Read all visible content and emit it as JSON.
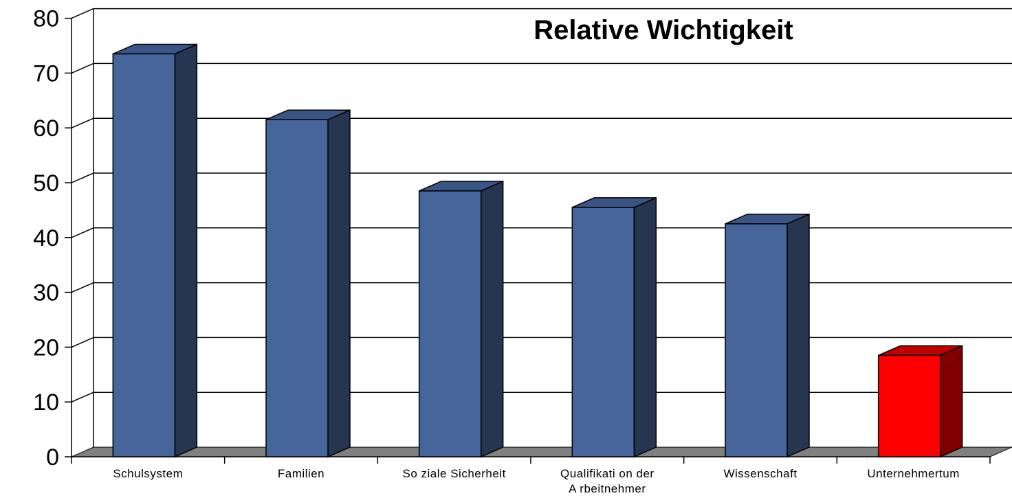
{
  "chart_data": {
    "type": "bar",
    "title": "Relative Wichtigkeit",
    "xlabel": "",
    "ylabel": "",
    "categories": [
      "Schulsystem",
      "Familien",
      "So ziale Sicherheit",
      "Qualifikation der Arbeitnehmer",
      "Wissenschaft",
      "Unternehmertum"
    ],
    "category_lines": [
      [
        "Schulsystem"
      ],
      [
        "Familien"
      ],
      [
        "So ziale Sicherheit"
      ],
      [
        "Qualifikati on der",
        "A rbeitnehmer"
      ],
      [
        "Wissenschaft"
      ],
      [
        "Unternehmertum"
      ]
    ],
    "values": [
      73.5,
      61.5,
      48.5,
      45.5,
      42.5,
      18.5
    ],
    "bar_colors": [
      "#46659a",
      "#46659a",
      "#46659a",
      "#46659a",
      "#46659a",
      "#ff0000"
    ],
    "bar_side_colors": [
      "#263550",
      "#263550",
      "#263550",
      "#263550",
      "#263550",
      "#800000"
    ],
    "bar_top_colors": [
      "#3a5585",
      "#3a5585",
      "#3a5585",
      "#3a5585",
      "#3a5585",
      "#c00000"
    ],
    "floor_color": "#808080",
    "ylim": [
      0,
      80
    ],
    "yticks": [
      "0",
      "10",
      "20",
      "30",
      "40",
      "50",
      "60",
      "70",
      "80"
    ],
    "grid": true,
    "legend": "none",
    "style": "3d"
  }
}
